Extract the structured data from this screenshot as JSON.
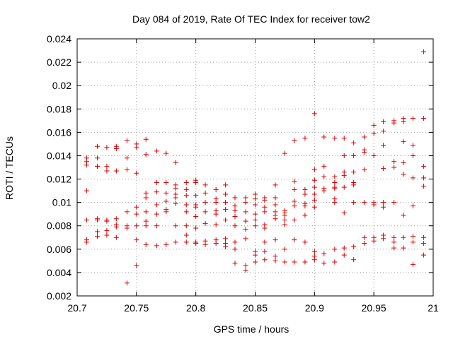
{
  "chart_data": {
    "type": "scatter",
    "title": "Day 084 of 2019, Rate Of TEC Index for receiver tow2",
    "xlabel": "GPS time / hours",
    "ylabel": "ROTI / TECUs",
    "xlim": [
      20.7,
      21.0
    ],
    "ylim": [
      0.002,
      0.024
    ],
    "grid": true,
    "marker": "+",
    "colors": {
      "points": "#d60000",
      "grid": "#a0a0a0",
      "axes": "#000000"
    },
    "x_ticks": [
      {
        "value": 20.7,
        "label": "20.7"
      },
      {
        "value": 20.75,
        "label": "20.75"
      },
      {
        "value": 20.8,
        "label": "20.8"
      },
      {
        "value": 20.85,
        "label": "20.85"
      },
      {
        "value": 20.9,
        "label": "20.9"
      },
      {
        "value": 20.95,
        "label": "20.95"
      },
      {
        "value": 21.0,
        "label": "21"
      }
    ],
    "y_ticks": [
      {
        "value": 0.002,
        "label": "0.002"
      },
      {
        "value": 0.004,
        "label": "0.004"
      },
      {
        "value": 0.006,
        "label": "0.006"
      },
      {
        "value": 0.008,
        "label": "0.008"
      },
      {
        "value": 0.01,
        "label": "0.01"
      },
      {
        "value": 0.012,
        "label": "0.012"
      },
      {
        "value": 0.014,
        "label": "0.014"
      },
      {
        "value": 0.016,
        "label": "0.016"
      },
      {
        "value": 0.018,
        "label": "0.018"
      },
      {
        "value": 0.02,
        "label": "0.02"
      },
      {
        "value": 0.022,
        "label": "0.022"
      },
      {
        "value": 0.024,
        "label": "0.024"
      }
    ],
    "series": [
      {
        "name": "ROTI",
        "points": [
          [
            20.708,
            0.0138
          ],
          [
            20.708,
            0.0135
          ],
          [
            20.708,
            0.0132
          ],
          [
            20.708,
            0.011
          ],
          [
            20.708,
            0.0085
          ],
          [
            20.708,
            0.0068
          ],
          [
            20.708,
            0.0066
          ],
          [
            20.717,
            0.0148
          ],
          [
            20.717,
            0.0138
          ],
          [
            20.717,
            0.0131
          ],
          [
            20.717,
            0.0131
          ],
          [
            20.717,
            0.0086
          ],
          [
            20.717,
            0.0085
          ],
          [
            20.717,
            0.0075
          ],
          [
            20.717,
            0.0071
          ],
          [
            20.725,
            0.0147
          ],
          [
            20.725,
            0.0131
          ],
          [
            20.725,
            0.0127
          ],
          [
            20.725,
            0.0085
          ],
          [
            20.725,
            0.0084
          ],
          [
            20.725,
            0.0076
          ],
          [
            20.725,
            0.0072
          ],
          [
            20.733,
            0.0148
          ],
          [
            20.733,
            0.0146
          ],
          [
            20.733,
            0.0127
          ],
          [
            20.733,
            0.0086
          ],
          [
            20.733,
            0.0081
          ],
          [
            20.733,
            0.0079
          ],
          [
            20.733,
            0.007
          ],
          [
            20.742,
            0.0153
          ],
          [
            20.742,
            0.0138
          ],
          [
            20.742,
            0.0128
          ],
          [
            20.742,
            0.0092
          ],
          [
            20.742,
            0.008
          ],
          [
            20.742,
            0.0078
          ],
          [
            20.742,
            0.0031
          ],
          [
            20.75,
            0.015
          ],
          [
            20.75,
            0.0147
          ],
          [
            20.75,
            0.0125
          ],
          [
            20.75,
            0.0096
          ],
          [
            20.75,
            0.009
          ],
          [
            20.75,
            0.008
          ],
          [
            20.75,
            0.0068
          ],
          [
            20.75,
            0.0046
          ],
          [
            20.758,
            0.0154
          ],
          [
            20.758,
            0.0141
          ],
          [
            20.758,
            0.0108
          ],
          [
            20.758,
            0.0104
          ],
          [
            20.758,
            0.0092
          ],
          [
            20.758,
            0.0084
          ],
          [
            20.758,
            0.008
          ],
          [
            20.758,
            0.0064
          ],
          [
            20.767,
            0.0144
          ],
          [
            20.767,
            0.0117
          ],
          [
            20.767,
            0.0109
          ],
          [
            20.767,
            0.0098
          ],
          [
            20.767,
            0.009
          ],
          [
            20.767,
            0.008
          ],
          [
            20.767,
            0.0063
          ],
          [
            20.775,
            0.0142
          ],
          [
            20.775,
            0.0117
          ],
          [
            20.775,
            0.0108
          ],
          [
            20.775,
            0.0101
          ],
          [
            20.775,
            0.0094
          ],
          [
            20.775,
            0.0092
          ],
          [
            20.775,
            0.0064
          ],
          [
            20.783,
            0.0134
          ],
          [
            20.783,
            0.0115
          ],
          [
            20.783,
            0.0112
          ],
          [
            20.783,
            0.0107
          ],
          [
            20.783,
            0.0104
          ],
          [
            20.783,
            0.0099
          ],
          [
            20.783,
            0.008
          ],
          [
            20.783,
            0.0066
          ],
          [
            20.792,
            0.0117
          ],
          [
            20.792,
            0.0111
          ],
          [
            20.792,
            0.0106
          ],
          [
            20.792,
            0.0098
          ],
          [
            20.792,
            0.0092
          ],
          [
            20.792,
            0.008
          ],
          [
            20.792,
            0.0072
          ],
          [
            20.792,
            0.0066
          ],
          [
            20.8,
            0.0119
          ],
          [
            20.8,
            0.0117
          ],
          [
            20.8,
            0.0106
          ],
          [
            20.8,
            0.0098
          ],
          [
            20.8,
            0.0096
          ],
          [
            20.8,
            0.0088
          ],
          [
            20.8,
            0.0078
          ],
          [
            20.8,
            0.0066
          ],
          [
            20.8,
            0.0065
          ],
          [
            20.808,
            0.0115
          ],
          [
            20.808,
            0.0108
          ],
          [
            20.808,
            0.01
          ],
          [
            20.808,
            0.0092
          ],
          [
            20.808,
            0.0082
          ],
          [
            20.808,
            0.0067
          ],
          [
            20.808,
            0.0064
          ],
          [
            20.817,
            0.0111
          ],
          [
            20.817,
            0.0103
          ],
          [
            20.817,
            0.01
          ],
          [
            20.817,
            0.0093
          ],
          [
            20.817,
            0.009
          ],
          [
            20.817,
            0.0081
          ],
          [
            20.817,
            0.0068
          ],
          [
            20.817,
            0.0065
          ],
          [
            20.825,
            0.0115
          ],
          [
            20.825,
            0.0107
          ],
          [
            20.825,
            0.01
          ],
          [
            20.825,
            0.0094
          ],
          [
            20.825,
            0.0085
          ],
          [
            20.825,
            0.0069
          ],
          [
            20.825,
            0.0065
          ],
          [
            20.825,
            0.0062
          ],
          [
            20.833,
            0.0104
          ],
          [
            20.833,
            0.0097
          ],
          [
            20.833,
            0.0093
          ],
          [
            20.833,
            0.0088
          ],
          [
            20.833,
            0.008
          ],
          [
            20.833,
            0.0066
          ],
          [
            20.833,
            0.006
          ],
          [
            20.833,
            0.0048
          ],
          [
            20.842,
            0.0104
          ],
          [
            20.842,
            0.01
          ],
          [
            20.842,
            0.0092
          ],
          [
            20.842,
            0.0084
          ],
          [
            20.842,
            0.0077
          ],
          [
            20.842,
            0.0069
          ],
          [
            20.842,
            0.0046
          ],
          [
            20.842,
            0.0042
          ],
          [
            20.85,
            0.0107
          ],
          [
            20.85,
            0.0103
          ],
          [
            20.85,
            0.0098
          ],
          [
            20.85,
            0.009
          ],
          [
            20.85,
            0.0085
          ],
          [
            20.85,
            0.008
          ],
          [
            20.85,
            0.0058
          ],
          [
            20.85,
            0.0055
          ],
          [
            20.85,
            0.0049
          ],
          [
            20.858,
            0.0104
          ],
          [
            20.858,
            0.0102
          ],
          [
            20.858,
            0.0096
          ],
          [
            20.858,
            0.0092
          ],
          [
            20.858,
            0.0081
          ],
          [
            20.858,
            0.0078
          ],
          [
            20.858,
            0.0066
          ],
          [
            20.858,
            0.0058
          ],
          [
            20.858,
            0.0051
          ],
          [
            20.867,
            0.0115
          ],
          [
            20.867,
            0.0104
          ],
          [
            20.867,
            0.0098
          ],
          [
            20.867,
            0.0092
          ],
          [
            20.867,
            0.0089
          ],
          [
            20.867,
            0.0086
          ],
          [
            20.867,
            0.0068
          ],
          [
            20.867,
            0.0054
          ],
          [
            20.867,
            0.005
          ],
          [
            20.875,
            0.0142
          ],
          [
            20.875,
            0.0093
          ],
          [
            20.875,
            0.0091
          ],
          [
            20.875,
            0.0089
          ],
          [
            20.875,
            0.0085
          ],
          [
            20.875,
            0.0081
          ],
          [
            20.875,
            0.006
          ],
          [
            20.875,
            0.0049
          ],
          [
            20.883,
            0.0153
          ],
          [
            20.883,
            0.0118
          ],
          [
            20.883,
            0.0111
          ],
          [
            20.883,
            0.0101
          ],
          [
            20.883,
            0.0097
          ],
          [
            20.883,
            0.0085
          ],
          [
            20.883,
            0.0068
          ],
          [
            20.883,
            0.0049
          ],
          [
            20.892,
            0.0155
          ],
          [
            20.892,
            0.0111
          ],
          [
            20.892,
            0.0107
          ],
          [
            20.892,
            0.0099
          ],
          [
            20.892,
            0.0097
          ],
          [
            20.892,
            0.0089
          ],
          [
            20.892,
            0.0066
          ],
          [
            20.892,
            0.0049
          ],
          [
            20.9,
            0.0176
          ],
          [
            20.9,
            0.0128
          ],
          [
            20.9,
            0.0119
          ],
          [
            20.9,
            0.0113
          ],
          [
            20.9,
            0.0107
          ],
          [
            20.9,
            0.0102
          ],
          [
            20.9,
            0.0096
          ],
          [
            20.9,
            0.0058
          ],
          [
            20.9,
            0.0054
          ],
          [
            20.9,
            0.0051
          ],
          [
            20.908,
            0.0156
          ],
          [
            20.908,
            0.0131
          ],
          [
            20.908,
            0.0122
          ],
          [
            20.908,
            0.0112
          ],
          [
            20.908,
            0.011
          ],
          [
            20.908,
            0.0056
          ],
          [
            20.908,
            0.0048
          ],
          [
            20.917,
            0.0155
          ],
          [
            20.917,
            0.0122
          ],
          [
            20.917,
            0.0117
          ],
          [
            20.917,
            0.0113
          ],
          [
            20.917,
            0.0112
          ],
          [
            20.917,
            0.0103
          ],
          [
            20.917,
            0.01
          ],
          [
            20.917,
            0.006
          ],
          [
            20.917,
            0.0049
          ],
          [
            20.925,
            0.0155
          ],
          [
            20.925,
            0.014
          ],
          [
            20.925,
            0.0126
          ],
          [
            20.925,
            0.0123
          ],
          [
            20.925,
            0.0113
          ],
          [
            20.925,
            0.0091
          ],
          [
            20.925,
            0.0061
          ],
          [
            20.925,
            0.0055
          ],
          [
            20.933,
            0.0151
          ],
          [
            20.933,
            0.014
          ],
          [
            20.933,
            0.0126
          ],
          [
            20.933,
            0.0117
          ],
          [
            20.933,
            0.0115
          ],
          [
            20.933,
            0.01
          ],
          [
            20.933,
            0.0062
          ],
          [
            20.933,
            0.0051
          ],
          [
            20.942,
            0.0156
          ],
          [
            20.942,
            0.0145
          ],
          [
            20.942,
            0.0143
          ],
          [
            20.942,
            0.0128
          ],
          [
            20.942,
            0.01
          ],
          [
            20.942,
            0.007
          ],
          [
            20.942,
            0.0065
          ],
          [
            20.95,
            0.0166
          ],
          [
            20.95,
            0.0159
          ],
          [
            20.95,
            0.014
          ],
          [
            20.95,
            0.01
          ],
          [
            20.95,
            0.0098
          ],
          [
            20.95,
            0.007
          ],
          [
            20.95,
            0.0067
          ],
          [
            20.958,
            0.0169
          ],
          [
            20.958,
            0.0161
          ],
          [
            20.958,
            0.0149
          ],
          [
            20.958,
            0.0129
          ],
          [
            20.958,
            0.01
          ],
          [
            20.958,
            0.0096
          ],
          [
            20.958,
            0.0072
          ],
          [
            20.958,
            0.0069
          ],
          [
            20.967,
            0.017
          ],
          [
            20.967,
            0.0168
          ],
          [
            20.967,
            0.0135
          ],
          [
            20.967,
            0.013
          ],
          [
            20.967,
            0.01
          ],
          [
            20.967,
            0.007
          ],
          [
            20.967,
            0.0066
          ],
          [
            20.967,
            0.0061
          ],
          [
            20.975,
            0.0172
          ],
          [
            20.975,
            0.0169
          ],
          [
            20.975,
            0.0152
          ],
          [
            20.975,
            0.0134
          ],
          [
            20.975,
            0.0124
          ],
          [
            20.975,
            0.0089
          ],
          [
            20.975,
            0.007
          ],
          [
            20.975,
            0.0061
          ],
          [
            20.983,
            0.0172
          ],
          [
            20.983,
            0.0149
          ],
          [
            20.983,
            0.014
          ],
          [
            20.983,
            0.0121
          ],
          [
            20.983,
            0.0097
          ],
          [
            20.983,
            0.0071
          ],
          [
            20.983,
            0.0066
          ],
          [
            20.983,
            0.0047
          ],
          [
            20.992,
            0.0229
          ],
          [
            20.992,
            0.0172
          ],
          [
            20.992,
            0.0131
          ],
          [
            20.992,
            0.0121
          ],
          [
            20.992,
            0.0114
          ],
          [
            20.992,
            0.007
          ],
          [
            20.992,
            0.0065
          ],
          [
            20.992,
            0.0055
          ]
        ]
      }
    ]
  }
}
